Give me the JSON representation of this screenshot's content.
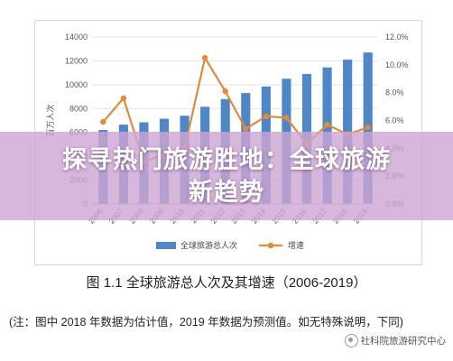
{
  "chart_data": {
    "type": "bar",
    "categories": [
      "2006",
      "2007",
      "2008",
      "2009",
      "2010",
      "2011",
      "2012",
      "2013",
      "2014",
      "2015",
      "2016",
      "2017",
      "2018",
      "2019"
    ],
    "series": [
      {
        "name": "全球旅游总人次",
        "type": "bar",
        "axis": "left",
        "color": "#4f86c6",
        "values": [
          6200,
          6650,
          6850,
          7150,
          7400,
          8150,
          8800,
          9300,
          9850,
          10500,
          10900,
          11450,
          12100,
          12700
        ]
      },
      {
        "name": "增速",
        "type": "line",
        "axis": "right",
        "color": "#e08a3c",
        "values": [
          5.9,
          7.6,
          3.0,
          3.6,
          4.0,
          10.5,
          8.1,
          5.4,
          6.3,
          6.2,
          4.3,
          5.7,
          5.0,
          5.5
        ]
      }
    ],
    "ylabel": "百万人次",
    "y_left": {
      "min": 0,
      "max": 14000,
      "ticks": [
        "0",
        "2000",
        "4000",
        "6000",
        "8000",
        "10000",
        "12000",
        "14000"
      ]
    },
    "y_right": {
      "min": 0,
      "max": 12,
      "ticks": [
        "0.0%",
        "2.0%",
        "4.0%",
        "6.0%",
        "8.0%",
        "10.0%",
        "12.0%"
      ]
    },
    "grid": true,
    "legend": "bottom-center"
  },
  "banner": {
    "line1": "探寻热门旅游胜地：全球旅游",
    "line2": "新趋势"
  },
  "caption": "图 1.1 全球旅游总人次及其增速（2006-2019）",
  "note": "(注：图中 2018 年数据为估计值，2019 年数据为预测值。如无特殊说明，下同)",
  "watermark": "社科院旅游研究中心"
}
